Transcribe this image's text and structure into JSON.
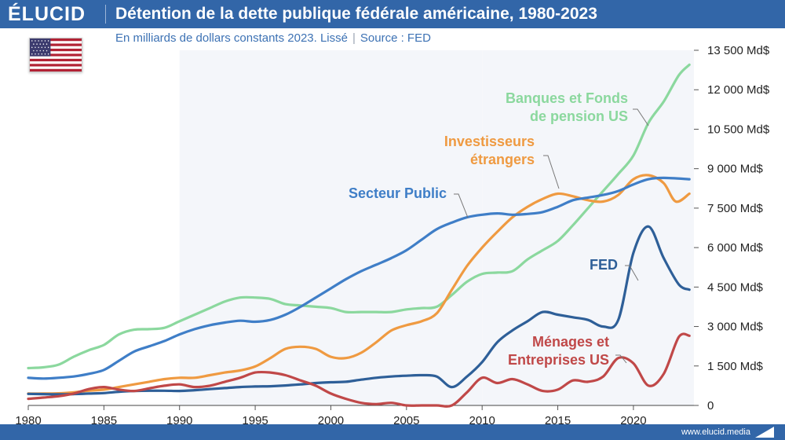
{
  "header": {
    "logo": "ÉLUCID",
    "title": "Détention de la dette publique fédérale américaine, 1980-2023",
    "subtitle": "En milliards de dollars constants 2023. Lissé",
    "source": "Source : FED"
  },
  "footer": {
    "url": "www.elucid.media"
  },
  "flag": {
    "icon": "us-flag-icon"
  },
  "chart_data": {
    "type": "line",
    "title": "Détention de la dette publique fédérale américaine, 1980-2023",
    "xlim": [
      1980,
      2024
    ],
    "ylim": [
      0,
      13500
    ],
    "x_ticks": [
      1980,
      1985,
      1990,
      1995,
      2000,
      2005,
      2010,
      2015,
      2020
    ],
    "y_ticks": [
      {
        "v": 0,
        "label": "0"
      },
      {
        "v": 1500,
        "label": "1 500 Md$"
      },
      {
        "v": 3000,
        "label": "3 000 Md$"
      },
      {
        "v": 4500,
        "label": "4 500 Md$"
      },
      {
        "v": 6000,
        "label": "6 000 Md$"
      },
      {
        "v": 7500,
        "label": "7 500 Md$"
      },
      {
        "v": 9000,
        "label": "9 000 Md$"
      },
      {
        "v": 10500,
        "label": "10 500 Md$"
      },
      {
        "v": 12000,
        "label": "12 000 Md$"
      },
      {
        "v": 13500,
        "label": "13 500 Md$"
      }
    ],
    "series": [
      {
        "name": "Banques et Fonds de pension US",
        "label_lines": [
          "Banques et Fonds",
          "de pension US"
        ],
        "color": "#8bd89e",
        "points": [
          [
            1980,
            1420
          ],
          [
            1981,
            1450
          ],
          [
            1982,
            1550
          ],
          [
            1983,
            1850
          ],
          [
            1984,
            2100
          ],
          [
            1985,
            2300
          ],
          [
            1986,
            2700
          ],
          [
            1987,
            2880
          ],
          [
            1988,
            2900
          ],
          [
            1989,
            2950
          ],
          [
            1990,
            3200
          ],
          [
            1991,
            3450
          ],
          [
            1992,
            3700
          ],
          [
            1993,
            3950
          ],
          [
            1994,
            4100
          ],
          [
            1995,
            4100
          ],
          [
            1996,
            4050
          ],
          [
            1997,
            3850
          ],
          [
            1998,
            3800
          ],
          [
            1999,
            3750
          ],
          [
            2000,
            3700
          ],
          [
            2001,
            3550
          ],
          [
            2002,
            3550
          ],
          [
            2003,
            3550
          ],
          [
            2004,
            3550
          ],
          [
            2005,
            3650
          ],
          [
            2006,
            3700
          ],
          [
            2007,
            3750
          ],
          [
            2008,
            4200
          ],
          [
            2009,
            4700
          ],
          [
            2010,
            5000
          ],
          [
            2011,
            5050
          ],
          [
            2012,
            5100
          ],
          [
            2013,
            5550
          ],
          [
            2014,
            5900
          ],
          [
            2015,
            6250
          ],
          [
            2016,
            6850
          ],
          [
            2017,
            7500
          ],
          [
            2018,
            8150
          ],
          [
            2019,
            8800
          ],
          [
            2020,
            9500
          ],
          [
            2021,
            10750
          ],
          [
            2022,
            11550
          ],
          [
            2023,
            12550
          ],
          [
            2023.7,
            12950
          ]
        ]
      },
      {
        "name": "Investisseurs étrangers",
        "label_lines": [
          "Investisseurs",
          "étrangers"
        ],
        "color": "#ef9a41",
        "points": [
          [
            1980,
            450
          ],
          [
            1981,
            450
          ],
          [
            1982,
            460
          ],
          [
            1983,
            500
          ],
          [
            1984,
            560
          ],
          [
            1985,
            600
          ],
          [
            1986,
            700
          ],
          [
            1987,
            800
          ],
          [
            1988,
            900
          ],
          [
            1989,
            1000
          ],
          [
            1990,
            1050
          ],
          [
            1991,
            1050
          ],
          [
            1992,
            1150
          ],
          [
            1993,
            1250
          ],
          [
            1994,
            1330
          ],
          [
            1995,
            1480
          ],
          [
            1996,
            1800
          ],
          [
            1997,
            2150
          ],
          [
            1998,
            2230
          ],
          [
            1999,
            2150
          ],
          [
            2000,
            1850
          ],
          [
            2001,
            1800
          ],
          [
            2002,
            2000
          ],
          [
            2003,
            2400
          ],
          [
            2004,
            2850
          ],
          [
            2005,
            3050
          ],
          [
            2006,
            3200
          ],
          [
            2007,
            3500
          ],
          [
            2008,
            4400
          ],
          [
            2009,
            5300
          ],
          [
            2010,
            6000
          ],
          [
            2011,
            6600
          ],
          [
            2012,
            7150
          ],
          [
            2013,
            7550
          ],
          [
            2014,
            7850
          ],
          [
            2015,
            8050
          ],
          [
            2016,
            7950
          ],
          [
            2017,
            7800
          ],
          [
            2018,
            7750
          ],
          [
            2019,
            8000
          ],
          [
            2020,
            8600
          ],
          [
            2021,
            8750
          ],
          [
            2022,
            8450
          ],
          [
            2022.8,
            7750
          ],
          [
            2023.7,
            8050
          ]
        ]
      },
      {
        "name": "Secteur Public",
        "label_lines": [
          "Secteur Public"
        ],
        "color": "#3f7ec7",
        "points": [
          [
            1980,
            1050
          ],
          [
            1981,
            1020
          ],
          [
            1982,
            1050
          ],
          [
            1983,
            1100
          ],
          [
            1984,
            1200
          ],
          [
            1985,
            1350
          ],
          [
            1986,
            1700
          ],
          [
            1987,
            2050
          ],
          [
            1988,
            2250
          ],
          [
            1989,
            2450
          ],
          [
            1990,
            2700
          ],
          [
            1991,
            2900
          ],
          [
            1992,
            3050
          ],
          [
            1993,
            3150
          ],
          [
            1994,
            3220
          ],
          [
            1995,
            3180
          ],
          [
            1996,
            3250
          ],
          [
            1997,
            3450
          ],
          [
            1998,
            3750
          ],
          [
            1999,
            4100
          ],
          [
            2000,
            4450
          ],
          [
            2001,
            4800
          ],
          [
            2002,
            5100
          ],
          [
            2003,
            5350
          ],
          [
            2004,
            5600
          ],
          [
            2005,
            5900
          ],
          [
            2006,
            6300
          ],
          [
            2007,
            6700
          ],
          [
            2008,
            6950
          ],
          [
            2009,
            7150
          ],
          [
            2010,
            7250
          ],
          [
            2011,
            7300
          ],
          [
            2012,
            7250
          ],
          [
            2013,
            7280
          ],
          [
            2014,
            7350
          ],
          [
            2015,
            7550
          ],
          [
            2016,
            7800
          ],
          [
            2017,
            7900
          ],
          [
            2018,
            8000
          ],
          [
            2019,
            8150
          ],
          [
            2020,
            8400
          ],
          [
            2021,
            8600
          ],
          [
            2022,
            8650
          ],
          [
            2023.7,
            8600
          ]
        ]
      },
      {
        "name": "FED",
        "label_lines": [
          "FED"
        ],
        "color": "#2e5f98",
        "points": [
          [
            1980,
            440
          ],
          [
            1981,
            430
          ],
          [
            1982,
            420
          ],
          [
            1983,
            430
          ],
          [
            1984,
            450
          ],
          [
            1985,
            470
          ],
          [
            1986,
            520
          ],
          [
            1987,
            550
          ],
          [
            1988,
            560
          ],
          [
            1989,
            560
          ],
          [
            1990,
            550
          ],
          [
            1991,
            580
          ],
          [
            1992,
            620
          ],
          [
            1993,
            660
          ],
          [
            1994,
            700
          ],
          [
            1995,
            720
          ],
          [
            1996,
            730
          ],
          [
            1997,
            760
          ],
          [
            1998,
            800
          ],
          [
            1999,
            850
          ],
          [
            2000,
            880
          ],
          [
            2001,
            900
          ],
          [
            2002,
            980
          ],
          [
            2003,
            1050
          ],
          [
            2004,
            1100
          ],
          [
            2005,
            1130
          ],
          [
            2006,
            1150
          ],
          [
            2007,
            1100
          ],
          [
            2008,
            700
          ],
          [
            2009,
            1100
          ],
          [
            2010,
            1650
          ],
          [
            2011,
            2400
          ],
          [
            2012,
            2850
          ],
          [
            2013,
            3200
          ],
          [
            2014,
            3550
          ],
          [
            2015,
            3450
          ],
          [
            2016,
            3350
          ],
          [
            2017,
            3250
          ],
          [
            2018,
            3000
          ],
          [
            2019,
            3250
          ],
          [
            2020,
            5800
          ],
          [
            2021,
            6800
          ],
          [
            2022,
            5600
          ],
          [
            2023,
            4600
          ],
          [
            2023.7,
            4400
          ]
        ]
      },
      {
        "name": "Ménages et Entreprises US",
        "label_lines": [
          "Ménages et",
          "Entreprises US"
        ],
        "color": "#c04848",
        "points": [
          [
            1980,
            250
          ],
          [
            1981,
            300
          ],
          [
            1982,
            350
          ],
          [
            1983,
            450
          ],
          [
            1984,
            620
          ],
          [
            1985,
            700
          ],
          [
            1986,
            600
          ],
          [
            1987,
            550
          ],
          [
            1988,
            650
          ],
          [
            1989,
            750
          ],
          [
            1990,
            800
          ],
          [
            1991,
            700
          ],
          [
            1992,
            750
          ],
          [
            1993,
            900
          ],
          [
            1994,
            1050
          ],
          [
            1995,
            1250
          ],
          [
            1996,
            1250
          ],
          [
            1997,
            1150
          ],
          [
            1998,
            950
          ],
          [
            1999,
            750
          ],
          [
            2000,
            450
          ],
          [
            2001,
            250
          ],
          [
            2002,
            100
          ],
          [
            2003,
            50
          ],
          [
            2004,
            100
          ],
          [
            2005,
            0
          ],
          [
            2006,
            0
          ],
          [
            2007,
            0
          ],
          [
            2008,
            0
          ],
          [
            2009,
            500
          ],
          [
            2010,
            1050
          ],
          [
            2011,
            850
          ],
          [
            2012,
            1000
          ],
          [
            2013,
            800
          ],
          [
            2014,
            550
          ],
          [
            2015,
            600
          ],
          [
            2016,
            950
          ],
          [
            2017,
            900
          ],
          [
            2018,
            1100
          ],
          [
            2019,
            1800
          ],
          [
            2020,
            1600
          ],
          [
            2021,
            750
          ],
          [
            2022,
            1200
          ],
          [
            2023,
            2600
          ],
          [
            2023.7,
            2650
          ]
        ]
      }
    ]
  }
}
